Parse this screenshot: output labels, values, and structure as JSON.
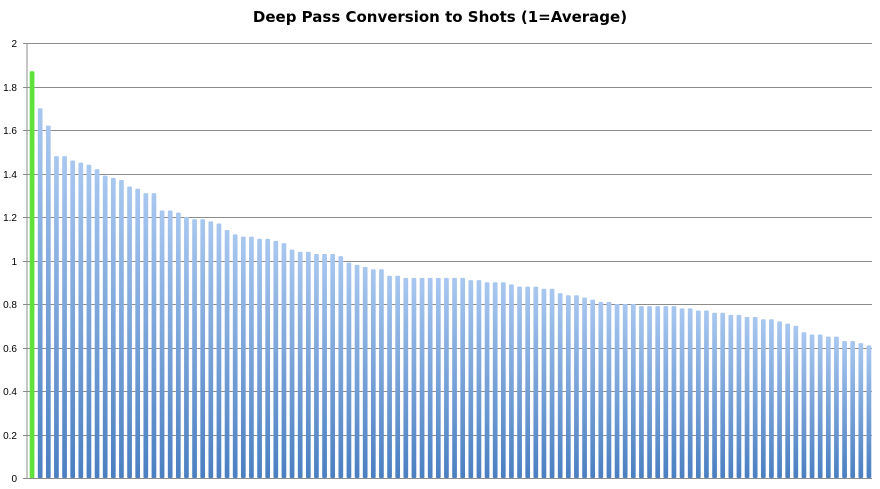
{
  "chart_data": {
    "type": "bar",
    "title": "Deep Pass Conversion to Shots (1=Average)",
    "xlabel": "",
    "ylabel": "",
    "ylim": [
      0,
      2
    ],
    "yticks": [
      "0",
      "0.2",
      "0.4",
      "0.6",
      "0.8",
      "1",
      "1.2",
      "1.4",
      "1.6",
      "1.8",
      "2"
    ],
    "grid": true,
    "legend": "none",
    "highlight_color": "#5fe03a",
    "bar_color_top": "#a9c8f0",
    "bar_color_bottom": "#4a7fc1",
    "gridline_color": "#8c8c8c",
    "values": [
      1.87,
      1.7,
      1.62,
      1.48,
      1.48,
      1.46,
      1.45,
      1.44,
      1.42,
      1.39,
      1.38,
      1.37,
      1.34,
      1.33,
      1.31,
      1.31,
      1.23,
      1.23,
      1.22,
      1.2,
      1.19,
      1.19,
      1.18,
      1.17,
      1.14,
      1.12,
      1.11,
      1.11,
      1.1,
      1.1,
      1.09,
      1.08,
      1.05,
      1.04,
      1.04,
      1.03,
      1.03,
      1.03,
      1.02,
      0.99,
      0.98,
      0.97,
      0.96,
      0.96,
      0.93,
      0.93,
      0.92,
      0.92,
      0.92,
      0.92,
      0.92,
      0.92,
      0.92,
      0.92,
      0.91,
      0.91,
      0.9,
      0.9,
      0.9,
      0.89,
      0.88,
      0.88,
      0.88,
      0.87,
      0.87,
      0.85,
      0.84,
      0.84,
      0.83,
      0.82,
      0.81,
      0.81,
      0.8,
      0.8,
      0.8,
      0.79,
      0.79,
      0.79,
      0.79,
      0.79,
      0.78,
      0.78,
      0.77,
      0.77,
      0.76,
      0.76,
      0.75,
      0.75,
      0.74,
      0.74,
      0.73,
      0.73,
      0.72,
      0.71,
      0.7,
      0.67,
      0.66,
      0.66,
      0.65,
      0.65,
      0.63,
      0.63,
      0.62,
      0.61
    ],
    "highlight_index": 0
  }
}
